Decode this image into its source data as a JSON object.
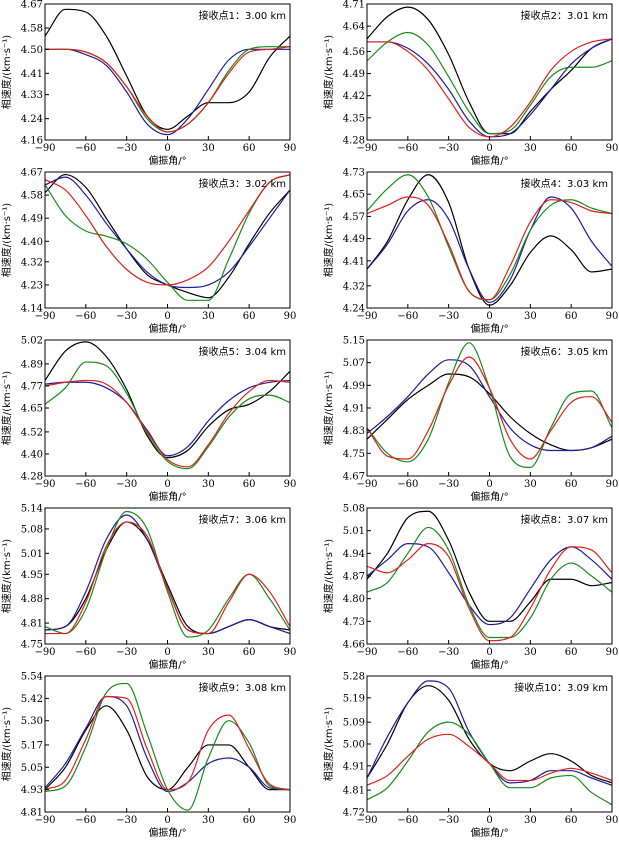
{
  "series_colors": {
    "black": "#000000",
    "blue": "#1c1ca0",
    "green": "#1a8a1a",
    "red": "#e0201c"
  },
  "chart_data": [
    {
      "type": "line",
      "title": "",
      "annotation": "接收点1：3.00 km",
      "xlabel": "偏振角/°",
      "ylabel": "相速度/(km·s⁻¹)",
      "xlim": [
        -90,
        90
      ],
      "ylim": [
        4.16,
        4.67
      ],
      "xticks": [
        -90,
        -60,
        -30,
        0,
        30,
        60,
        90
      ],
      "yticks": [
        4.16,
        4.24,
        4.33,
        4.41,
        4.5,
        4.58,
        4.67
      ],
      "x": [
        -90,
        -75,
        -60,
        -45,
        -30,
        -15,
        0,
        15,
        30,
        45,
        60,
        75,
        90
      ],
      "series": [
        {
          "color": "black",
          "values": [
            4.55,
            4.65,
            4.64,
            4.55,
            4.4,
            4.25,
            4.2,
            4.25,
            4.3,
            4.3,
            4.34,
            4.47,
            4.55
          ]
        },
        {
          "color": "blue",
          "values": [
            4.5,
            4.5,
            4.48,
            4.44,
            4.34,
            4.22,
            4.18,
            4.24,
            4.35,
            4.46,
            4.5,
            4.5,
            4.5
          ]
        },
        {
          "color": "green",
          "values": [
            4.5,
            4.5,
            4.49,
            4.45,
            4.36,
            4.24,
            4.19,
            4.22,
            4.3,
            4.42,
            4.5,
            4.51,
            4.51
          ]
        },
        {
          "color": "red",
          "values": [
            4.5,
            4.5,
            4.49,
            4.45,
            4.36,
            4.25,
            4.19,
            4.22,
            4.3,
            4.41,
            4.49,
            4.5,
            4.51
          ]
        }
      ]
    },
    {
      "type": "line",
      "title": "",
      "annotation": "接收点2：3.01 km",
      "xlabel": "偏振角/°",
      "ylabel": "相速度/(km·s⁻¹)",
      "xlim": [
        -90,
        90
      ],
      "ylim": [
        4.28,
        4.71
      ],
      "xticks": [
        -90,
        -60,
        -30,
        0,
        30,
        60,
        90
      ],
      "yticks": [
        4.28,
        4.35,
        4.42,
        4.49,
        4.56,
        4.64,
        4.71
      ],
      "x": [
        -90,
        -75,
        -60,
        -45,
        -30,
        -15,
        0,
        15,
        30,
        45,
        60,
        75,
        90
      ],
      "series": [
        {
          "color": "black",
          "values": [
            4.6,
            4.67,
            4.7,
            4.66,
            4.55,
            4.4,
            4.3,
            4.3,
            4.37,
            4.44,
            4.5,
            4.57,
            4.6
          ]
        },
        {
          "color": "blue",
          "values": [
            4.59,
            4.59,
            4.57,
            4.52,
            4.44,
            4.34,
            4.29,
            4.3,
            4.36,
            4.44,
            4.52,
            4.57,
            4.6
          ]
        },
        {
          "color": "green",
          "values": [
            4.53,
            4.59,
            4.62,
            4.58,
            4.48,
            4.37,
            4.3,
            4.31,
            4.39,
            4.48,
            4.51,
            4.51,
            4.53
          ]
        },
        {
          "color": "red",
          "values": [
            4.59,
            4.59,
            4.56,
            4.5,
            4.41,
            4.32,
            4.29,
            4.32,
            4.4,
            4.5,
            4.56,
            4.59,
            4.6
          ]
        }
      ]
    },
    {
      "type": "line",
      "title": "",
      "annotation": "接收点3：3.02 km",
      "xlabel": "偏振角/°",
      "ylabel": "相速度/(km·s⁻¹)",
      "xlim": [
        -90,
        90
      ],
      "ylim": [
        4.14,
        4.67
      ],
      "xticks": [
        -90,
        -60,
        -30,
        0,
        30,
        60,
        90
      ],
      "yticks": [
        4.14,
        4.23,
        4.32,
        4.4,
        4.49,
        4.58,
        4.67
      ],
      "x": [
        -90,
        -75,
        -60,
        -45,
        -30,
        -15,
        0,
        15,
        30,
        45,
        60,
        75,
        90
      ],
      "series": [
        {
          "color": "black",
          "values": [
            4.59,
            4.66,
            4.61,
            4.49,
            4.37,
            4.27,
            4.23,
            4.2,
            4.18,
            4.26,
            4.39,
            4.51,
            4.6
          ]
        },
        {
          "color": "blue",
          "values": [
            4.62,
            4.65,
            4.58,
            4.47,
            4.37,
            4.28,
            4.23,
            4.22,
            4.23,
            4.28,
            4.38,
            4.49,
            4.6
          ]
        },
        {
          "color": "green",
          "values": [
            4.62,
            4.5,
            4.44,
            4.42,
            4.39,
            4.33,
            4.24,
            4.17,
            4.17,
            4.33,
            4.51,
            4.63,
            4.66
          ]
        },
        {
          "color": "red",
          "values": [
            4.64,
            4.6,
            4.5,
            4.38,
            4.29,
            4.24,
            4.23,
            4.25,
            4.3,
            4.4,
            4.52,
            4.63,
            4.66
          ]
        }
      ]
    },
    {
      "type": "line",
      "title": "",
      "annotation": "接收点4：3.03 km",
      "xlabel": "偏振角/°",
      "ylabel": "相速度/(km·s⁻¹)",
      "xlim": [
        -90,
        90
      ],
      "ylim": [
        4.24,
        4.73
      ],
      "xticks": [
        -90,
        -60,
        -30,
        0,
        30,
        60,
        90
      ],
      "yticks": [
        4.24,
        4.32,
        4.41,
        4.49,
        4.57,
        4.65,
        4.73
      ],
      "x": [
        -90,
        -75,
        -60,
        -45,
        -30,
        -15,
        0,
        15,
        30,
        45,
        60,
        75,
        90
      ],
      "series": [
        {
          "color": "black",
          "values": [
            4.38,
            4.48,
            4.63,
            4.72,
            4.62,
            4.38,
            4.25,
            4.32,
            4.44,
            4.5,
            4.45,
            4.37,
            4.38
          ]
        },
        {
          "color": "blue",
          "values": [
            4.38,
            4.47,
            4.59,
            4.63,
            4.56,
            4.38,
            4.26,
            4.34,
            4.52,
            4.64,
            4.6,
            4.48,
            4.39
          ]
        },
        {
          "color": "green",
          "values": [
            4.59,
            4.67,
            4.72,
            4.64,
            4.46,
            4.3,
            4.27,
            4.36,
            4.52,
            4.61,
            4.63,
            4.6,
            4.58
          ]
        },
        {
          "color": "red",
          "values": [
            4.58,
            4.61,
            4.64,
            4.61,
            4.47,
            4.3,
            4.27,
            4.39,
            4.55,
            4.63,
            4.62,
            4.59,
            4.58
          ]
        }
      ]
    },
    {
      "type": "line",
      "title": "",
      "annotation": "接收点5：3.04 km",
      "xlabel": "偏振角/°",
      "ylabel": "相速度/(km·s⁻¹)",
      "xlim": [
        -90,
        90
      ],
      "ylim": [
        4.28,
        5.02
      ],
      "xticks": [
        -90,
        -60,
        -30,
        0,
        30,
        60,
        90
      ],
      "yticks": [
        4.28,
        4.4,
        4.52,
        4.65,
        4.77,
        4.89,
        5.02
      ],
      "x": [
        -90,
        -75,
        -60,
        -45,
        -30,
        -15,
        0,
        15,
        30,
        45,
        60,
        75,
        90
      ],
      "series": [
        {
          "color": "black",
          "values": [
            4.8,
            4.96,
            5.01,
            4.93,
            4.75,
            4.5,
            4.38,
            4.42,
            4.55,
            4.64,
            4.67,
            4.74,
            4.85
          ]
        },
        {
          "color": "blue",
          "values": [
            4.78,
            4.79,
            4.79,
            4.76,
            4.68,
            4.53,
            4.39,
            4.44,
            4.58,
            4.69,
            4.76,
            4.79,
            4.8
          ]
        },
        {
          "color": "green",
          "values": [
            4.67,
            4.76,
            4.9,
            4.88,
            4.73,
            4.51,
            4.36,
            4.32,
            4.44,
            4.6,
            4.7,
            4.72,
            4.68
          ]
        },
        {
          "color": "red",
          "values": [
            4.77,
            4.79,
            4.8,
            4.78,
            4.68,
            4.52,
            4.37,
            4.33,
            4.45,
            4.62,
            4.74,
            4.8,
            4.79
          ]
        }
      ]
    },
    {
      "type": "line",
      "title": "",
      "annotation": "接收点6：3.05 km",
      "xlabel": "偏振角/°",
      "ylabel": "相速度/(km·s⁻¹)",
      "xlim": [
        -90,
        90
      ],
      "ylim": [
        4.67,
        5.15
      ],
      "xticks": [
        -90,
        -60,
        -30,
        0,
        30,
        60,
        90
      ],
      "yticks": [
        4.67,
        4.75,
        4.83,
        4.91,
        4.99,
        5.07,
        5.15
      ],
      "x": [
        -90,
        -75,
        -60,
        -45,
        -30,
        -15,
        0,
        15,
        30,
        45,
        60,
        75,
        90
      ],
      "series": [
        {
          "color": "black",
          "values": [
            4.8,
            4.87,
            4.94,
            4.99,
            5.03,
            5.02,
            4.96,
            4.88,
            4.82,
            4.78,
            4.76,
            4.77,
            4.8
          ]
        },
        {
          "color": "blue",
          "values": [
            4.82,
            4.88,
            4.95,
            5.03,
            5.08,
            5.06,
            4.95,
            4.84,
            4.78,
            4.76,
            4.76,
            4.77,
            4.81
          ]
        },
        {
          "color": "green",
          "values": [
            4.84,
            4.75,
            4.72,
            4.8,
            5.0,
            5.14,
            4.98,
            4.74,
            4.7,
            4.84,
            4.96,
            4.97,
            4.84
          ]
        },
        {
          "color": "red",
          "values": [
            4.84,
            4.74,
            4.73,
            4.83,
            4.99,
            5.09,
            4.98,
            4.8,
            4.73,
            4.83,
            4.93,
            4.95,
            4.86
          ]
        }
      ]
    },
    {
      "type": "line",
      "title": "",
      "annotation": "接收点7：3.06 km",
      "xlabel": "偏振角/°",
      "ylabel": "相速度/(km·s⁻¹)",
      "xlim": [
        -90,
        90
      ],
      "ylim": [
        4.75,
        5.14
      ],
      "xticks": [
        -90,
        -60,
        -30,
        0,
        30,
        60,
        90
      ],
      "yticks": [
        4.75,
        4.81,
        4.88,
        4.95,
        5.01,
        5.08,
        5.14
      ],
      "x": [
        -90,
        -75,
        -60,
        -45,
        -30,
        -15,
        0,
        15,
        30,
        45,
        60,
        75,
        90
      ],
      "series": [
        {
          "color": "black",
          "values": [
            4.79,
            4.8,
            4.88,
            5.02,
            5.1,
            5.05,
            4.92,
            4.8,
            4.78,
            4.8,
            4.82,
            4.8,
            4.79
          ]
        },
        {
          "color": "blue",
          "values": [
            4.79,
            4.8,
            4.9,
            5.05,
            5.12,
            5.05,
            4.91,
            4.79,
            4.78,
            4.8,
            4.82,
            4.8,
            4.78
          ]
        },
        {
          "color": "green",
          "values": [
            4.8,
            4.78,
            4.85,
            5.02,
            5.13,
            5.08,
            4.9,
            4.77,
            4.79,
            4.88,
            4.95,
            4.88,
            4.79
          ]
        },
        {
          "color": "red",
          "values": [
            4.78,
            4.78,
            4.87,
            5.03,
            5.1,
            5.06,
            4.91,
            4.79,
            4.78,
            4.87,
            4.95,
            4.9,
            4.8
          ]
        }
      ]
    },
    {
      "type": "line",
      "title": "",
      "annotation": "接收点8：3.07 km",
      "xlabel": "偏振角/°",
      "ylabel": "相速度/(km·s⁻¹)",
      "xlim": [
        -90,
        90
      ],
      "ylim": [
        4.66,
        5.08
      ],
      "xticks": [
        -90,
        -60,
        -30,
        0,
        30,
        60,
        90
      ],
      "yticks": [
        4.66,
        4.73,
        4.8,
        4.87,
        4.94,
        5.01,
        5.08
      ],
      "x": [
        -90,
        -75,
        -60,
        -45,
        -30,
        -15,
        0,
        15,
        30,
        45,
        60,
        75,
        90
      ],
      "series": [
        {
          "color": "black",
          "values": [
            4.86,
            4.94,
            5.05,
            5.07,
            4.98,
            4.82,
            4.73,
            4.73,
            4.79,
            4.86,
            4.86,
            4.84,
            4.85
          ]
        },
        {
          "color": "blue",
          "values": [
            4.87,
            4.92,
            4.97,
            4.96,
            4.88,
            4.78,
            4.72,
            4.74,
            4.83,
            4.92,
            4.96,
            4.92,
            4.86
          ]
        },
        {
          "color": "green",
          "values": [
            4.82,
            4.85,
            4.94,
            5.02,
            4.95,
            4.78,
            4.68,
            4.68,
            4.74,
            4.86,
            4.91,
            4.87,
            4.82
          ]
        },
        {
          "color": "red",
          "values": [
            4.9,
            4.88,
            4.92,
            4.97,
            4.93,
            4.77,
            4.67,
            4.68,
            4.77,
            4.89,
            4.96,
            4.95,
            4.88
          ]
        }
      ]
    },
    {
      "type": "line",
      "title": "",
      "annotation": "接收点9：3.08 km",
      "xlabel": "偏振角/°",
      "ylabel": "相速度/(km·s⁻¹)",
      "xlim": [
        -90,
        90
      ],
      "ylim": [
        4.81,
        5.54
      ],
      "xticks": [
        -90,
        -60,
        -30,
        0,
        30,
        60,
        90
      ],
      "yticks": [
        4.81,
        4.93,
        5.05,
        5.17,
        5.3,
        5.42,
        5.54
      ],
      "x": [
        -90,
        -75,
        -60,
        -45,
        -30,
        -15,
        0,
        15,
        30,
        45,
        60,
        75,
        90
      ],
      "series": [
        {
          "color": "black",
          "values": [
            4.93,
            5.05,
            5.25,
            5.38,
            5.25,
            5.0,
            4.93,
            5.05,
            5.17,
            5.17,
            5.05,
            4.93,
            4.93
          ]
        },
        {
          "color": "blue",
          "values": [
            4.94,
            5.07,
            5.26,
            5.43,
            5.38,
            5.1,
            4.92,
            4.97,
            5.07,
            5.1,
            5.05,
            4.94,
            4.93
          ]
        },
        {
          "color": "green",
          "values": [
            4.92,
            4.95,
            5.16,
            5.45,
            5.5,
            5.23,
            4.93,
            4.82,
            5.1,
            5.3,
            5.18,
            4.95,
            4.93
          ]
        },
        {
          "color": "red",
          "values": [
            4.93,
            4.98,
            5.2,
            5.43,
            5.42,
            5.15,
            4.93,
            4.97,
            5.25,
            5.33,
            5.15,
            4.96,
            4.93
          ]
        }
      ]
    },
    {
      "type": "line",
      "title": "",
      "annotation": "接收点10：3.09 km",
      "xlabel": "偏振角/°",
      "ylabel": "相速度/(km·s⁻¹)",
      "xlim": [
        -90,
        90
      ],
      "ylim": [
        4.72,
        5.28
      ],
      "xticks": [
        -90,
        -60,
        -30,
        0,
        30,
        60,
        90
      ],
      "yticks": [
        4.72,
        4.81,
        4.91,
        5.0,
        5.09,
        5.19,
        5.28
      ],
      "x": [
        -90,
        -75,
        -60,
        -45,
        -30,
        -15,
        0,
        15,
        30,
        45,
        60,
        75,
        90
      ],
      "series": [
        {
          "color": "black",
          "values": [
            4.86,
            5.0,
            5.17,
            5.24,
            5.18,
            5.02,
            4.92,
            4.89,
            4.93,
            4.96,
            4.93,
            4.87,
            4.84
          ]
        },
        {
          "color": "blue",
          "values": [
            4.86,
            5.03,
            5.17,
            5.26,
            5.23,
            5.05,
            4.92,
            4.84,
            4.85,
            4.89,
            4.89,
            4.86,
            4.83
          ]
        },
        {
          "color": "green",
          "values": [
            4.77,
            4.82,
            4.93,
            5.05,
            5.09,
            5.04,
            4.92,
            4.82,
            4.82,
            4.86,
            4.87,
            4.8,
            4.75
          ]
        },
        {
          "color": "red",
          "values": [
            4.83,
            4.87,
            4.95,
            5.02,
            5.04,
            4.99,
            4.92,
            4.85,
            4.85,
            4.88,
            4.9,
            4.88,
            4.85
          ]
        }
      ]
    }
  ]
}
